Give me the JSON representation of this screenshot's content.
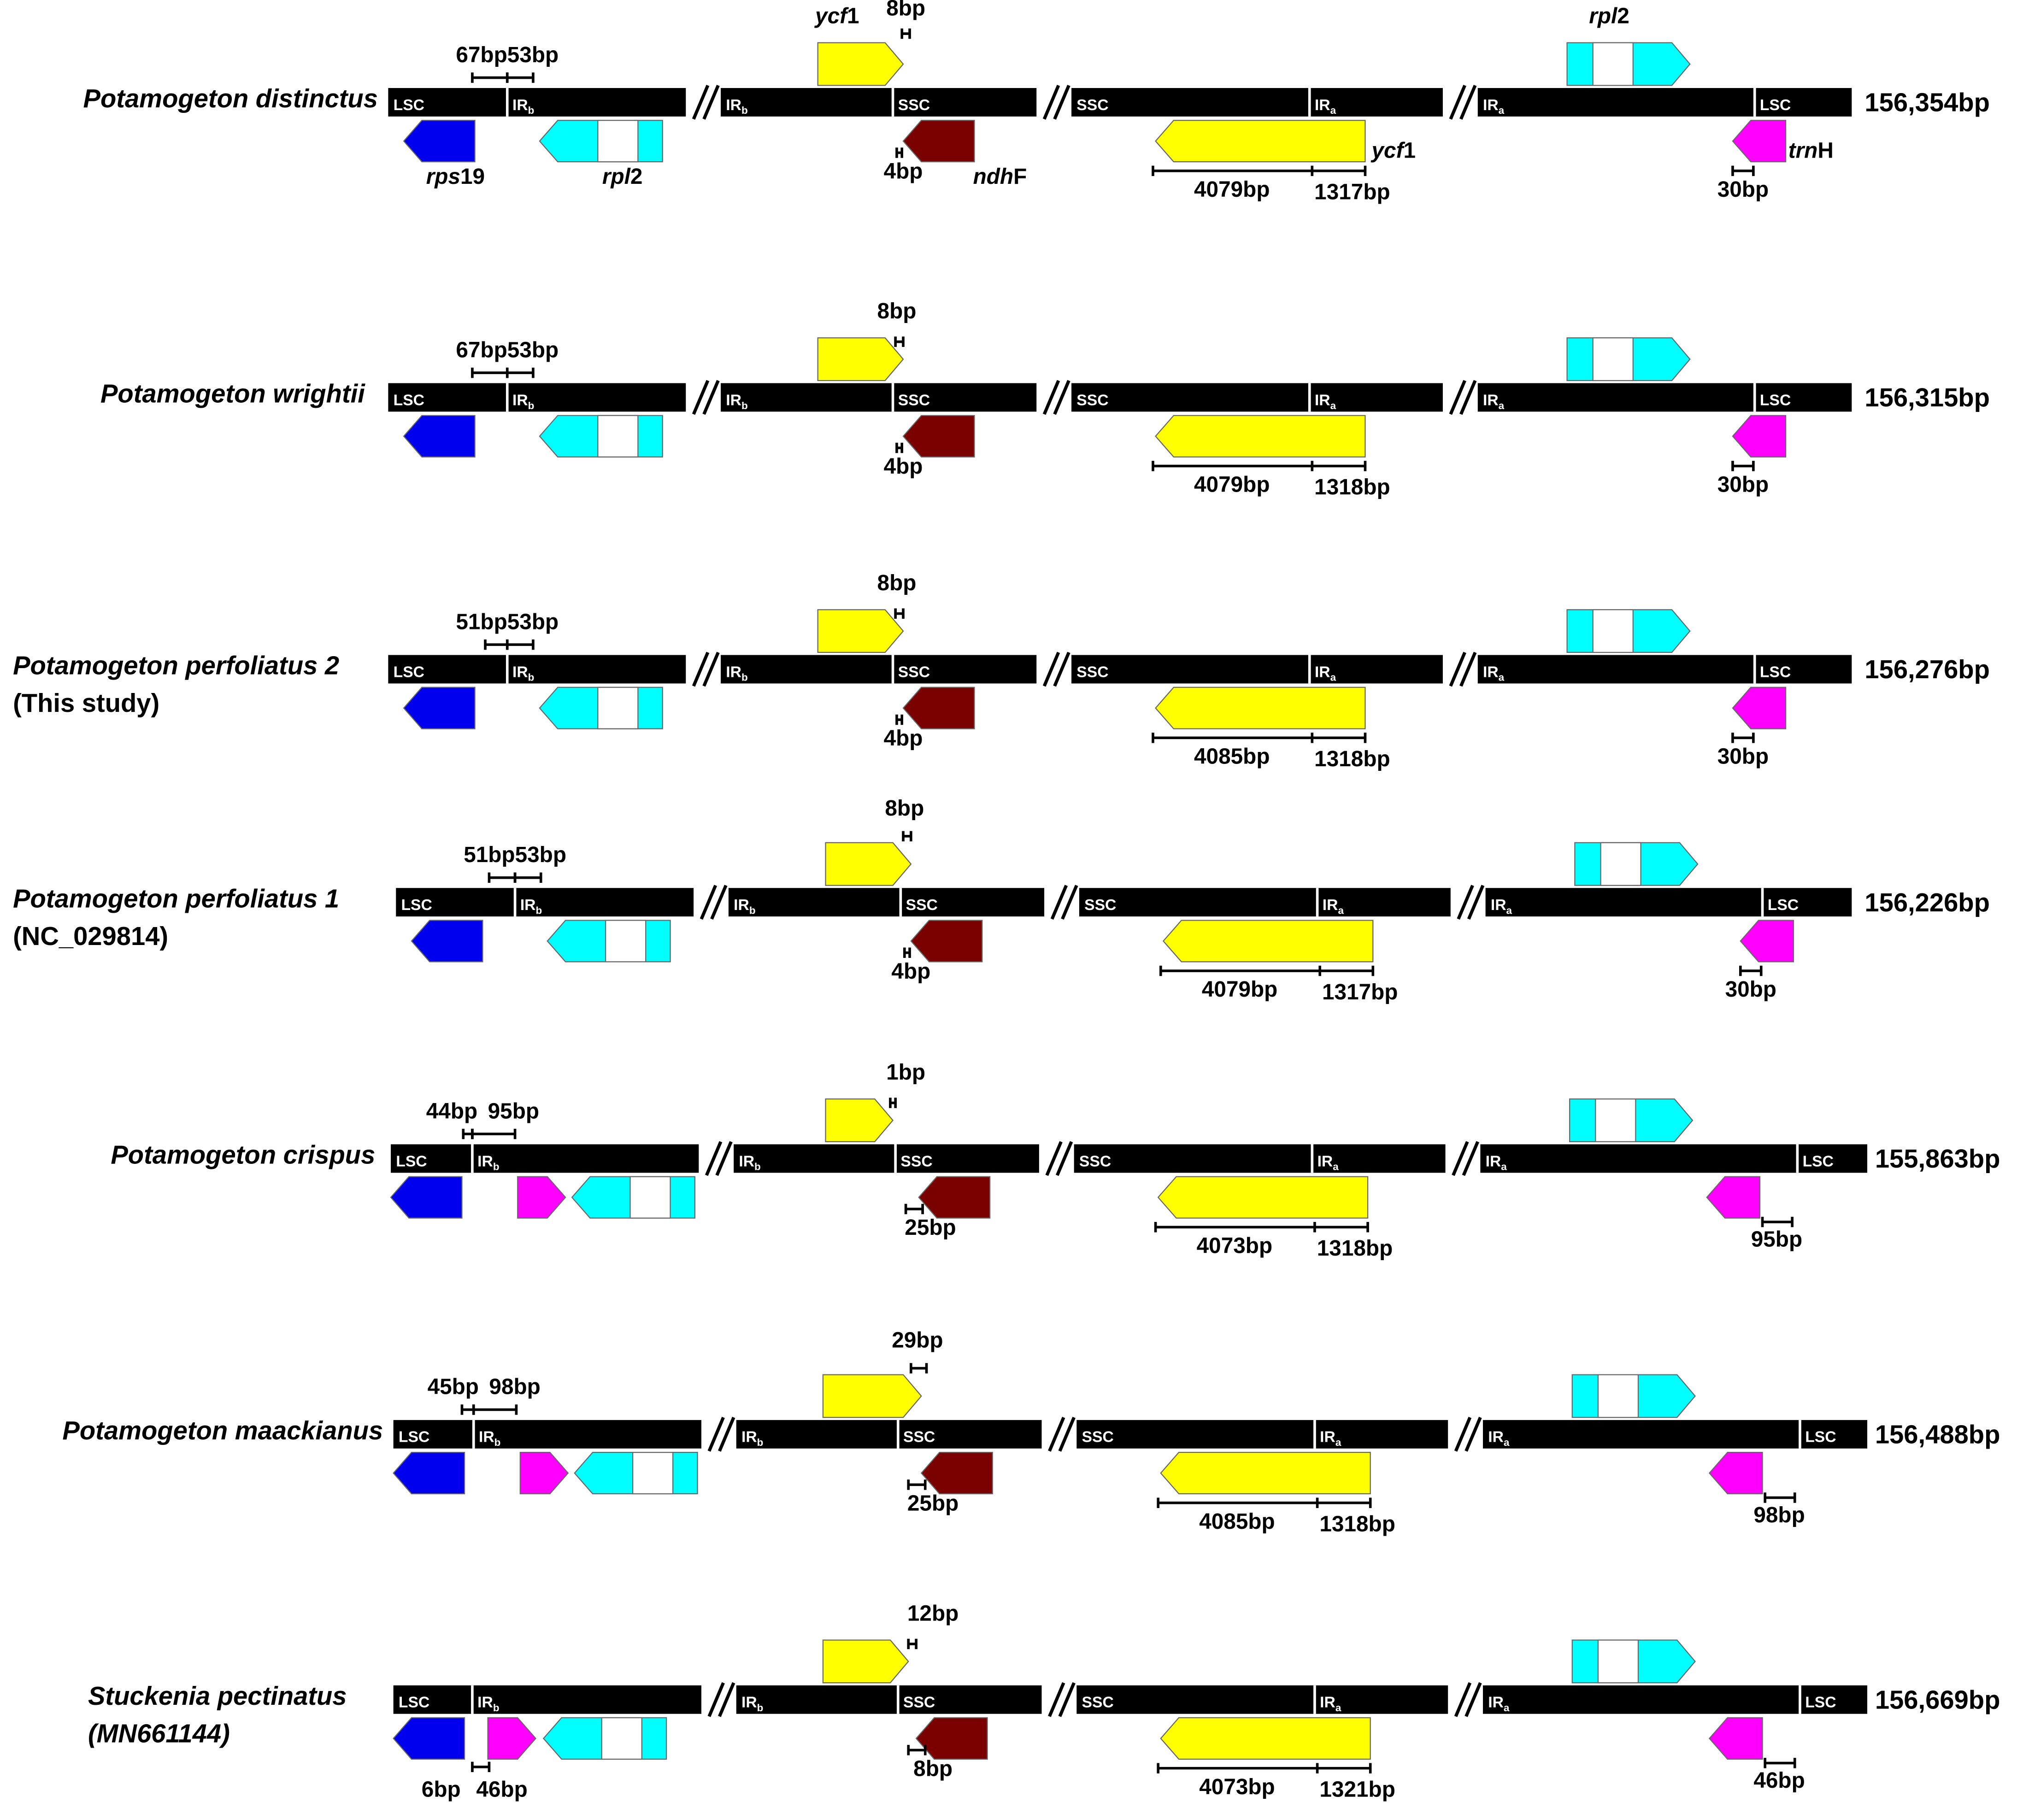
{
  "rows": [
    {
      "name": "Potamogeton distinctus",
      "note": null,
      "size": "156,354bp",
      "regions": [
        {
          "label": "LSC"
        },
        {
          "label": "IR",
          "sub": "b"
        },
        {
          "label": "IR",
          "sub": "b"
        },
        {
          "label": "SSC"
        },
        {
          "label": "SSC"
        },
        {
          "label": "IR",
          "sub": "a"
        },
        {
          "label": "IR",
          "sub": "a"
        },
        {
          "label": "LSC"
        }
      ],
      "lsc_irb": [
        "67bp",
        "53bp"
      ],
      "ycf1_top": "8bp",
      "ndhf": "4bp",
      "ycf1_bottom": [
        "4079bp",
        "1317bp"
      ],
      "trnh": "30bp",
      "gene_labels": {
        "ycf1_top": {
          "italic": "ycf",
          "rest": "1"
        },
        "rpl2_top": {
          "italic": "rpl",
          "rest": "2"
        },
        "rps19": {
          "italic": "rps",
          "rest": "19"
        },
        "rpl2_bottom": {
          "italic": "rpl",
          "rest": "2"
        },
        "ndhf": {
          "italic": "ndh",
          "rest": "F"
        },
        "ycf1_bottom": {
          "italic": "ycf",
          "rest": "1"
        },
        "trnh": {
          "italic": "trn",
          "rest": "H"
        }
      }
    },
    {
      "name": "Potamogeton wrightii",
      "note": null,
      "size": "156,315bp",
      "regions": [
        {
          "label": "LSC"
        },
        {
          "label": "IR",
          "sub": "b"
        },
        {
          "label": "IR",
          "sub": "b"
        },
        {
          "label": "SSC"
        },
        {
          "label": "SSC"
        },
        {
          "label": "IR",
          "sub": "a"
        },
        {
          "label": "IR",
          "sub": "a"
        },
        {
          "label": "LSC"
        }
      ],
      "lsc_irb": [
        "67bp",
        "53bp"
      ],
      "ycf1_top": "8bp",
      "ndhf": "4bp",
      "ycf1_bottom": [
        "4079bp",
        "1318bp"
      ],
      "trnh": "30bp"
    },
    {
      "name": "Potamogeton perfoliatus 2",
      "note": "(This study)",
      "size": "156,276bp",
      "regions": [
        {
          "label": "LSC"
        },
        {
          "label": "IR",
          "sub": "b"
        },
        {
          "label": "IR",
          "sub": "b"
        },
        {
          "label": "SSC"
        },
        {
          "label": "SSC"
        },
        {
          "label": "IR",
          "sub": "a"
        },
        {
          "label": "IR",
          "sub": "a"
        },
        {
          "label": "LSC"
        }
      ],
      "lsc_irb": [
        "51bp",
        "53bp"
      ],
      "ycf1_top": "8bp",
      "ndhf": "4bp",
      "ycf1_bottom": [
        "4085bp",
        "1318bp"
      ],
      "trnh": "30bp"
    },
    {
      "name": "Potamogeton perfoliatus 1",
      "note": "(NC_029814)",
      "size": "156,226bp",
      "regions": [
        {
          "label": "LSC"
        },
        {
          "label": "IR",
          "sub": "b"
        },
        {
          "label": "IR",
          "sub": "b"
        },
        {
          "label": "SSC"
        },
        {
          "label": "SSC"
        },
        {
          "label": "IR",
          "sub": "a"
        },
        {
          "label": "IR",
          "sub": "a"
        },
        {
          "label": "LSC"
        }
      ],
      "lsc_irb": [
        "51bp",
        "53bp"
      ],
      "ycf1_top": "8bp",
      "ndhf": "4bp",
      "ycf1_bottom": [
        "4079bp",
        "1317bp"
      ],
      "trnh": "30bp"
    },
    {
      "name": "Potamogeton crispus",
      "note": null,
      "size": "155,863bp",
      "regions": [
        {
          "label": "LSC"
        },
        {
          "label": "IR",
          "sub": "b"
        },
        {
          "label": "IR",
          "sub": "b"
        },
        {
          "label": "SSC"
        },
        {
          "label": "SSC"
        },
        {
          "label": "IR",
          "sub": "a"
        },
        {
          "label": "IR",
          "sub": "a"
        },
        {
          "label": "LSC"
        }
      ],
      "lsc_irb": [
        "44bp",
        "95bp"
      ],
      "ycf1_top": "1bp",
      "ndhf": "25bp",
      "ycf1_bottom": [
        "4073bp",
        "1318bp"
      ],
      "trnh": "95bp"
    },
    {
      "name": "Potamogeton maackianus",
      "note": null,
      "size": "156,488bp",
      "regions": [
        {
          "label": "LSC"
        },
        {
          "label": "IR",
          "sub": "b"
        },
        {
          "label": "IR",
          "sub": "b"
        },
        {
          "label": "SSC"
        },
        {
          "label": "SSC"
        },
        {
          "label": "IR",
          "sub": "a"
        },
        {
          "label": "IR",
          "sub": "a"
        },
        {
          "label": "LSC"
        }
      ],
      "lsc_irb": [
        "45bp",
        "98bp"
      ],
      "ycf1_top": "29bp",
      "ndhf": "25bp",
      "ycf1_bottom": [
        "4085bp",
        "1318bp"
      ],
      "trnh": "98bp"
    },
    {
      "name": "Stuckenia pectinatus",
      "note": "(MN661144)",
      "size": "156,669bp",
      "regions": [
        {
          "label": "LSC"
        },
        {
          "label": "IR",
          "sub": "b"
        },
        {
          "label": "IR",
          "sub": "b"
        },
        {
          "label": "SSC"
        },
        {
          "label": "SSC"
        },
        {
          "label": "IR",
          "sub": "a"
        },
        {
          "label": "IR",
          "sub": "a"
        },
        {
          "label": "LSC"
        }
      ],
      "lsc_irb": [
        "6bp",
        "46bp"
      ],
      "ycf1_top": "12bp",
      "ndhf": "8bp",
      "ycf1_bottom": [
        "4073bp",
        "1321bp"
      ],
      "trnh": "46bp"
    }
  ]
}
